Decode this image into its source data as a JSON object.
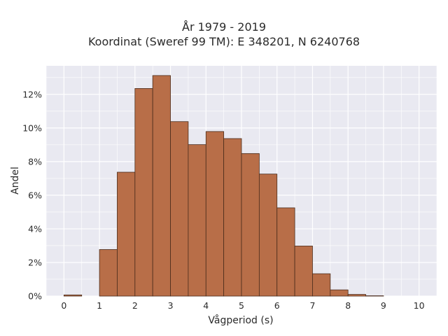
{
  "chart_data": {
    "type": "bar",
    "title_lines": [
      "År 1979 - 2019",
      "Koordinat (Sweref 99 TM): E 348201, N 6240768"
    ],
    "xlabel": "Vågperiod (s)",
    "ylabel": "Andel",
    "xlim": [
      -0.5,
      10.5
    ],
    "ylim": [
      0,
      13.7
    ],
    "x_ticks": [
      0,
      1,
      2,
      3,
      4,
      5,
      6,
      7,
      8,
      9,
      10
    ],
    "x_tick_labels": [
      "0",
      "1",
      "2",
      "3",
      "4",
      "5",
      "6",
      "7",
      "8",
      "9",
      "10"
    ],
    "y_ticks": [
      0,
      2,
      4,
      6,
      8,
      10,
      12
    ],
    "y_tick_labels": [
      "0%",
      "2%",
      "4%",
      "6%",
      "8%",
      "10%",
      "12%"
    ],
    "bin_width": 0.5,
    "bins": [
      {
        "start": 0.0,
        "end": 0.5,
        "value": 0.07
      },
      {
        "start": 0.5,
        "end": 1.0,
        "value": 0.0
      },
      {
        "start": 1.0,
        "end": 1.5,
        "value": 2.77
      },
      {
        "start": 1.5,
        "end": 2.0,
        "value": 7.37
      },
      {
        "start": 2.0,
        "end": 2.5,
        "value": 12.35
      },
      {
        "start": 2.5,
        "end": 3.0,
        "value": 13.12
      },
      {
        "start": 3.0,
        "end": 3.5,
        "value": 10.38
      },
      {
        "start": 3.5,
        "end": 4.0,
        "value": 9.01
      },
      {
        "start": 4.0,
        "end": 4.5,
        "value": 9.79
      },
      {
        "start": 4.5,
        "end": 5.0,
        "value": 9.37
      },
      {
        "start": 5.0,
        "end": 5.5,
        "value": 8.48
      },
      {
        "start": 5.5,
        "end": 6.0,
        "value": 7.26
      },
      {
        "start": 6.0,
        "end": 6.5,
        "value": 5.25
      },
      {
        "start": 6.5,
        "end": 7.0,
        "value": 2.98
      },
      {
        "start": 7.0,
        "end": 7.5,
        "value": 1.33
      },
      {
        "start": 7.5,
        "end": 8.0,
        "value": 0.37
      },
      {
        "start": 8.0,
        "end": 8.5,
        "value": 0.1
      },
      {
        "start": 8.5,
        "end": 9.0,
        "value": 0.02
      }
    ],
    "grid": true,
    "colors": {
      "bar_fill": "#b86e48",
      "bar_edge": "#4a2c1c",
      "plot_background": "#e9e9f1",
      "grid": "#ffffff"
    }
  }
}
